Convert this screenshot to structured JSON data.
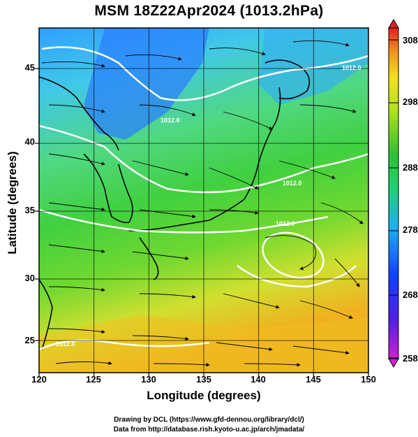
{
  "title": "MSM 18Z22Apr2024 (1013.2hPa)",
  "xlabel": "Longitude (degrees)",
  "ylabel": "Latitude  (degrees)",
  "credit_line1": "Drawing by DCL (https://www.gfd-dennou.org/library/dcl/)",
  "credit_line2": "Data from http://database.rish.kyoto-u.ac.jp/arch/jmadata/",
  "x_ticks": [
    "120",
    "125",
    "130",
    "135",
    "140",
    "145",
    "150"
  ],
  "y_ticks": [
    "45",
    "40",
    "35",
    "30",
    "25"
  ],
  "colorbar_ticks": [
    "308",
    "298",
    "288",
    "278",
    "268",
    "258"
  ],
  "contour_labels": [
    "1012.0",
    "1012.0",
    "1012.0",
    "1012.0",
    "1012.0"
  ],
  "chart_data": {
    "type": "heatmap",
    "title": "MSM 18Z22Apr2024 (1013.2hPa)",
    "xlabel": "Longitude (degrees)",
    "ylabel": "Latitude  (degrees)",
    "xlim": [
      120,
      150
    ],
    "ylim": [
      22.4,
      47.6
    ],
    "colorbar_range": [
      258,
      308
    ],
    "colorbar_ticks": [
      258,
      268,
      278,
      288,
      298,
      308
    ],
    "colors": {
      "low": "#c020c0",
      "mid_low": "#1040ff",
      "mid": "#20c020",
      "mid_high": "#f0e020",
      "high": "#e02020"
    },
    "temperature_samples_K": [
      {
        "lon": 122,
        "lat": 46,
        "value": 278
      },
      {
        "lon": 127,
        "lat": 42,
        "value": 275
      },
      {
        "lon": 132,
        "lat": 42,
        "value": 278
      },
      {
        "lon": 141,
        "lat": 44,
        "value": 278
      },
      {
        "lon": 125,
        "lat": 37,
        "value": 284
      },
      {
        "lon": 136,
        "lat": 37,
        "value": 289
      },
      {
        "lon": 145,
        "lat": 38,
        "value": 289
      },
      {
        "lon": 125,
        "lat": 30,
        "value": 288
      },
      {
        "lon": 140,
        "lat": 31,
        "value": 290
      },
      {
        "lon": 148,
        "lat": 32,
        "value": 291
      },
      {
        "lon": 126,
        "lat": 25,
        "value": 294
      },
      {
        "lon": 140,
        "lat": 24,
        "value": 296
      },
      {
        "lon": 148,
        "lat": 24,
        "value": 297
      }
    ],
    "streamlines": true,
    "pressure_contours": true
  }
}
